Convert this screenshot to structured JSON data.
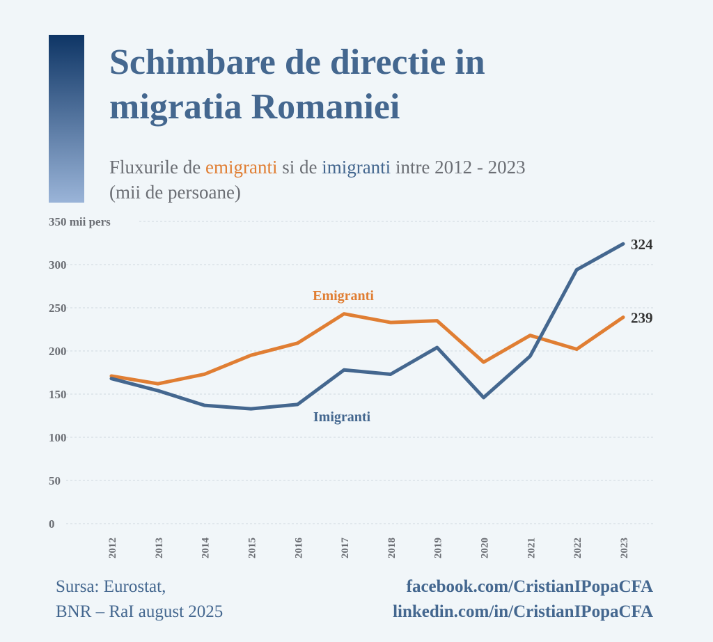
{
  "title_line1": "Schimbare de directie in",
  "title_line2": "migratia Romaniei",
  "subtitle": {
    "pre": "Fluxurile de ",
    "emig": "emigranti",
    "mid": " si de ",
    "imig": "imigranti",
    "post": " intre 2012 - 2023",
    "line2": "(mii de persoane)"
  },
  "source": {
    "line1": "Sursa: Eurostat,",
    "line2": "BNR – RaI august 2025"
  },
  "links": {
    "facebook": "facebook.com/CristianIPopaCFA",
    "linkedin": "linkedin.com/in/CristianIPopaCFA"
  },
  "chart_data": {
    "type": "line",
    "title": "Schimbare de directie in migratia Romaniei",
    "ylabel": "mii pers",
    "ylim": [
      0,
      350
    ],
    "yticks": [
      "0",
      "50",
      "100",
      "150",
      "200",
      "250",
      "300",
      "350 mii pers"
    ],
    "ytick_values": [
      0,
      50,
      100,
      150,
      200,
      250,
      300,
      350
    ],
    "x": [
      "2012",
      "2013",
      "2014",
      "2015",
      "2016",
      "2017",
      "2018",
      "2019",
      "2020",
      "2021",
      "2022",
      "2023"
    ],
    "grid": true,
    "series": [
      {
        "name": "Emigranti",
        "color": "#e07e33",
        "values": [
          171,
          162,
          173,
          195,
          209,
          243,
          233,
          235,
          187,
          218,
          202,
          239
        ],
        "end_label": "239"
      },
      {
        "name": "Imigranti",
        "color": "#44678f",
        "values": [
          168,
          154,
          137,
          133,
          138,
          178,
          173,
          204,
          146,
          194,
          294,
          324
        ],
        "end_label": "324"
      }
    ]
  }
}
